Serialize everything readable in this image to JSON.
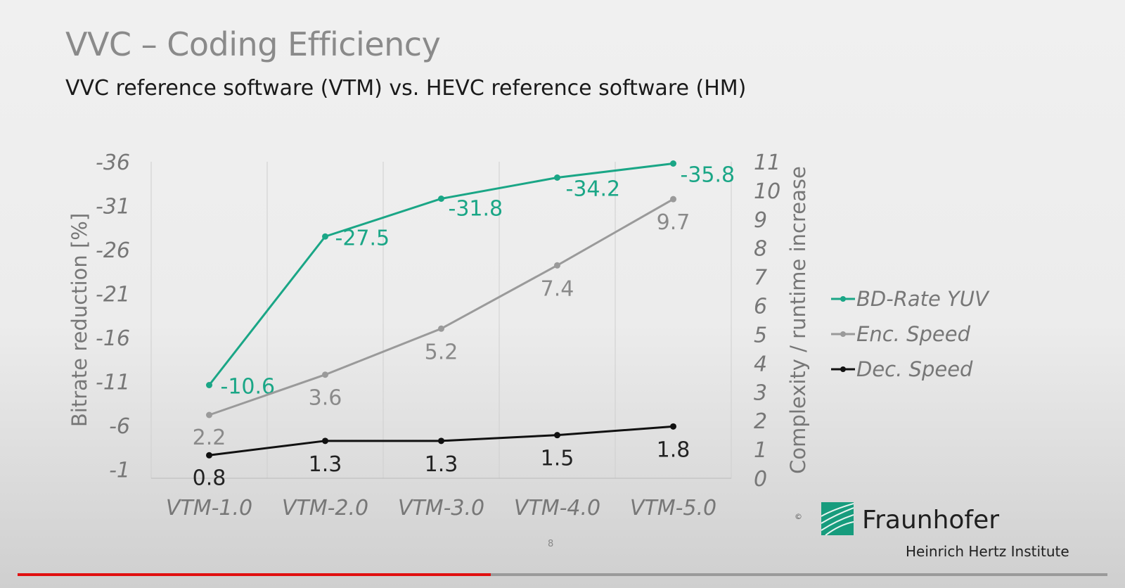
{
  "slide": {
    "title": "VVC – Coding Efficiency",
    "subtitle": "VVC reference software (VTM) vs. HEVC reference software (HM)",
    "page_number": "8",
    "logo": {
      "name": "Fraunhofer",
      "subtitle": "Heinrich Hertz Institute"
    },
    "copyright": "©"
  },
  "video": {
    "progress_fraction": 0.434,
    "progress_color": "#e01010"
  },
  "chart_data": {
    "type": "line",
    "categories": [
      "VTM-1.0",
      "VTM-2.0",
      "VTM-3.0",
      "VTM-4.0",
      "VTM-5.0"
    ],
    "ylabel_left": "Bitrate reduction [%]",
    "ylabel_right": "Complexity / runtime increase",
    "left_axis": {
      "reversed": true,
      "range": [
        0,
        -36
      ],
      "ticks": [
        "-36",
        "-31",
        "-26",
        "-21",
        "-16",
        "-11",
        "-6",
        "-1"
      ]
    },
    "right_axis": {
      "range": [
        0,
        11
      ],
      "ticks": [
        "11",
        "10",
        "9",
        "8",
        "7",
        "6",
        "5",
        "4",
        "3",
        "2",
        "1",
        "0"
      ]
    },
    "grid": "vertical",
    "legend_position": "right",
    "series": [
      {
        "name": "BD-Rate YUV",
        "axis": "left",
        "color": "#1aa686",
        "values": [
          -10.6,
          -27.5,
          -31.8,
          -34.2,
          -35.8
        ],
        "labels": [
          "-10.6",
          "-27.5",
          "-31.8",
          "-34.2",
          "-35.8"
        ]
      },
      {
        "name": "Enc. Speed",
        "axis": "right",
        "color": "#9a9a9a",
        "values": [
          2.2,
          3.6,
          5.2,
          7.4,
          9.7
        ],
        "labels": [
          "2.2",
          "3.6",
          "5.2",
          "7.4",
          "9.7"
        ]
      },
      {
        "name": "Dec. Speed",
        "axis": "right",
        "color": "#111111",
        "values": [
          0.8,
          1.3,
          1.3,
          1.5,
          1.8
        ],
        "labels": [
          "0.8",
          "1.3",
          "1.3",
          "1.5",
          "1.8"
        ]
      }
    ]
  }
}
